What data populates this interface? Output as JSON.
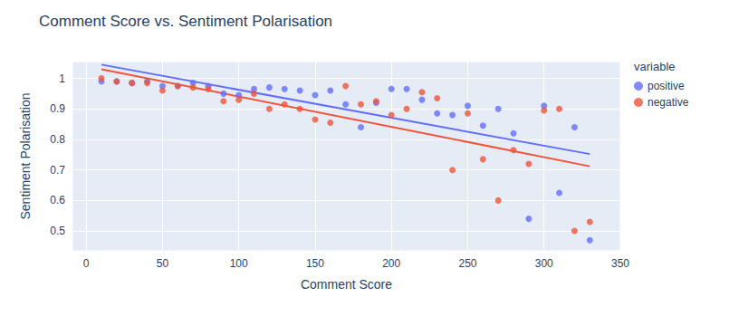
{
  "chart_data": {
    "type": "scatter",
    "title": "Comment Score vs. Sentiment Polarisation",
    "x_label": "Comment Score",
    "y_label": "Sentiment Polarisation",
    "legend_title": "variable",
    "legend": "right",
    "grid": true,
    "marker": "circle",
    "x": [
      10,
      20,
      30,
      40,
      50,
      60,
      70,
      80,
      90,
      100,
      110,
      120,
      130,
      140,
      150,
      160,
      170,
      180,
      190,
      200,
      210,
      220,
      230,
      240,
      250,
      260,
      270,
      280,
      290,
      300,
      310,
      320,
      330
    ],
    "series": [
      {
        "name": "positive",
        "color": "#636efa",
        "values": [
          0.99,
          0.99,
          0.985,
          0.99,
          0.975,
          0.975,
          0.985,
          0.975,
          0.95,
          0.945,
          0.965,
          0.97,
          0.965,
          0.96,
          0.945,
          0.96,
          0.915,
          0.84,
          0.92,
          0.965,
          0.965,
          0.93,
          0.885,
          0.88,
          0.91,
          0.845,
          0.9,
          0.82,
          0.54,
          0.91,
          0.625,
          0.84,
          0.47
        ],
        "trendline": {
          "x": [
            10,
            330
          ],
          "values": [
            1.045,
            0.752
          ]
        }
      },
      {
        "name": "negative",
        "color": "#EF553B",
        "values": [
          1.0,
          0.99,
          0.985,
          0.985,
          0.96,
          0.975,
          0.97,
          0.965,
          0.925,
          0.93,
          0.95,
          0.9,
          0.915,
          0.9,
          0.865,
          0.855,
          0.975,
          0.915,
          0.925,
          0.88,
          0.9,
          0.955,
          0.935,
          0.7,
          0.885,
          0.735,
          0.6,
          0.765,
          0.72,
          0.895,
          0.9,
          0.5,
          0.53
        ],
        "trendline": {
          "x": [
            10,
            330
          ],
          "values": [
            1.03,
            0.712
          ]
        }
      }
    ],
    "xlim": [
      -9,
      350
    ],
    "xticks": [
      0,
      50,
      100,
      150,
      200,
      250,
      300,
      350
    ],
    "ylim": [
      0.435,
      1.055
    ],
    "yticks": [
      0.5,
      0.6,
      0.7,
      0.8,
      0.9,
      1
    ]
  }
}
